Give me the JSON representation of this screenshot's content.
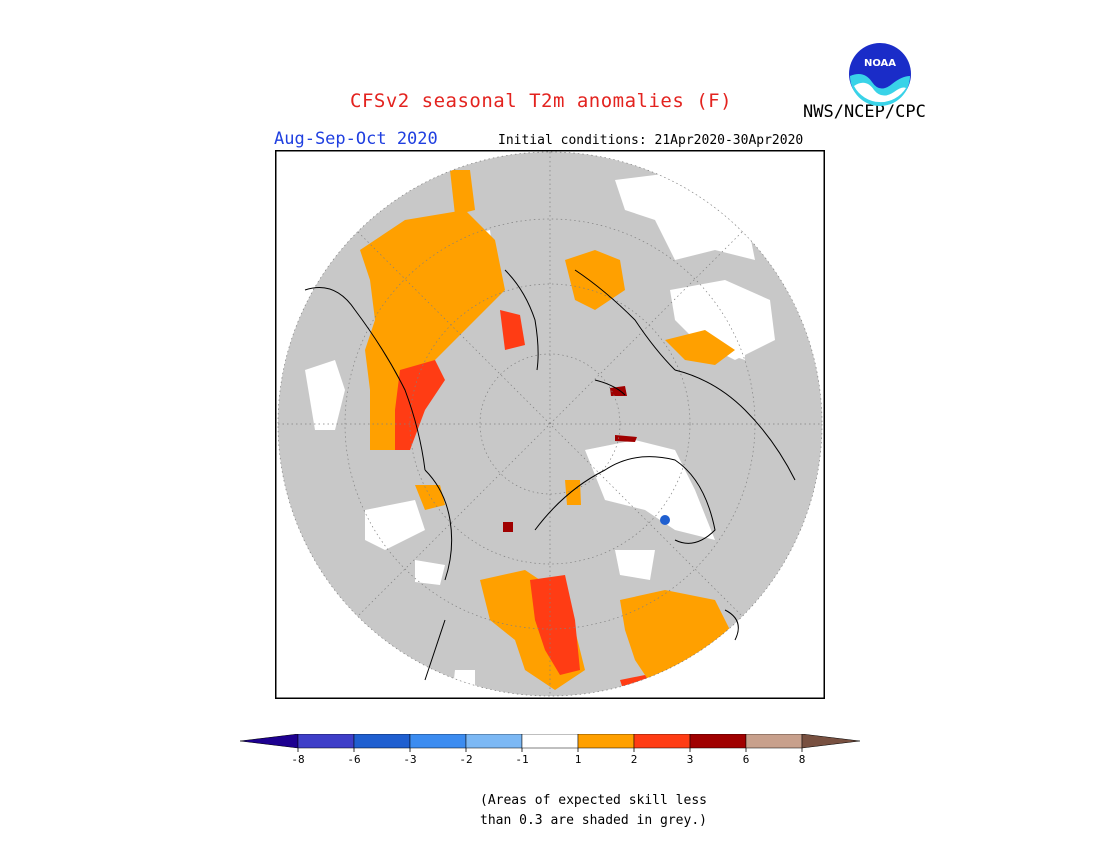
{
  "header": {
    "title": "CFSv2 seasonal T2m anomalies (F)",
    "agency": "NWS/NCEP/CPC",
    "season": "Aug-Sep-Oct 2020",
    "initial_conditions": "Initial conditions: 21Apr2020-30Apr2020",
    "logo_text": "NOAA"
  },
  "colorbar": {
    "tick_labels": [
      "-8",
      "-6",
      "-3",
      "-2",
      "-1",
      "1",
      "2",
      "3",
      "6",
      "8"
    ],
    "colors": [
      "#1d0090",
      "#3e3ec8",
      "#1f5fd0",
      "#3c8cf0",
      "#7cb8f4",
      "#ffffff",
      "#ffa000",
      "#ff3c14",
      "#a00000",
      "#c8a08c",
      "#785040"
    ]
  },
  "map": {
    "projection": "north polar stereographic",
    "masked_color": "#c8c8c8",
    "grid": true
  },
  "note": {
    "line1": "(Areas of expected skill less",
    "line2": "than 0.3 are shaded in grey.)"
  }
}
